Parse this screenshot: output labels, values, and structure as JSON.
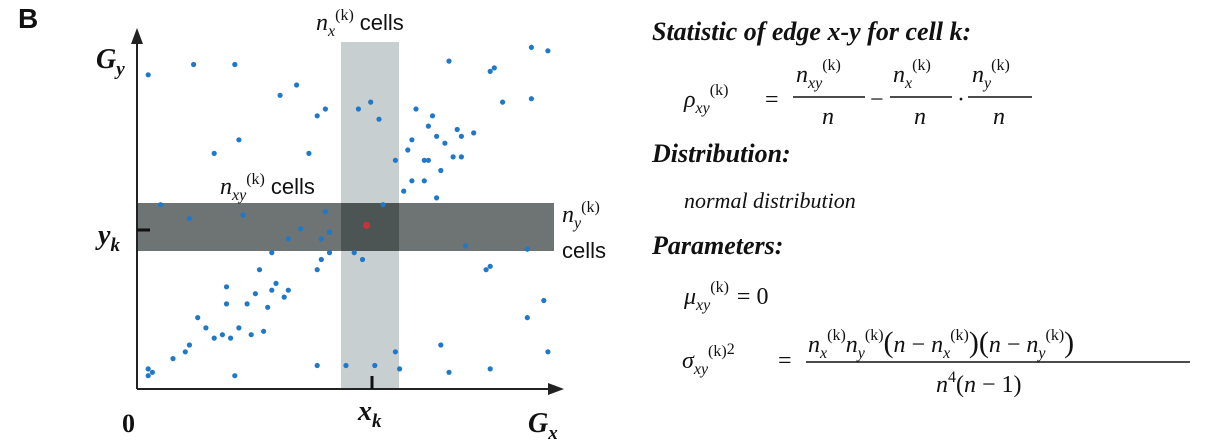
{
  "panel_label": "B",
  "scatter": {
    "y_axis_label_main": "G",
    "y_axis_label_sub": "y",
    "x_axis_label_main": "G",
    "x_axis_label_sub": "x",
    "origin_label": "0",
    "xk_main": "x",
    "xk_sub": "k",
    "yk_main": "y",
    "yk_sub": "k",
    "nx_label": {
      "var": "n",
      "sub": "x",
      "sup": "(k)",
      "word": "cells"
    },
    "nxy_label": {
      "var": "n",
      "sub": "xy",
      "sup": "(k)",
      "word": "cells"
    },
    "ny_label": {
      "var": "n",
      "sub": "y",
      "sup": "(k)",
      "word": "cells"
    },
    "colors": {
      "points": "#1f78c8",
      "highlight": "#c8323c",
      "horizontal_band": "#6e7373",
      "vertical_band": "#c8cfd1",
      "overlap": "#4d5454"
    },
    "points": [
      [
        0.02,
        0.91
      ],
      [
        0.13,
        0.94
      ],
      [
        0.23,
        0.94
      ],
      [
        0.38,
        0.88
      ],
      [
        0.53,
        0.81
      ],
      [
        0.75,
        0.95
      ],
      [
        0.95,
        0.99
      ],
      [
        0.99,
        0.98
      ],
      [
        0.86,
        0.93
      ],
      [
        0.85,
        0.92
      ],
      [
        0.88,
        0.83
      ],
      [
        0.81,
        0.74
      ],
      [
        0.95,
        0.84
      ],
      [
        0.78,
        0.73
      ],
      [
        0.71,
        0.79
      ],
      [
        0.67,
        0.81
      ],
      [
        0.76,
        0.67
      ],
      [
        0.69,
        0.66
      ],
      [
        0.73,
        0.63
      ],
      [
        0.65,
        0.69
      ],
      [
        0.66,
        0.6
      ],
      [
        0.72,
        0.55
      ],
      [
        0.77,
        0.75
      ],
      [
        0.7,
        0.76
      ],
      [
        0.66,
        0.72
      ],
      [
        0.59,
        0.53
      ],
      [
        0.74,
        0.71
      ],
      [
        0.56,
        0.83
      ],
      [
        0.58,
        0.78
      ],
      [
        0.78,
        0.67
      ],
      [
        0.7,
        0.66
      ],
      [
        0.72,
        0.73
      ],
      [
        0.45,
        0.81
      ],
      [
        0.24,
        0.72
      ],
      [
        0.18,
        0.68
      ],
      [
        0.41,
        0.68
      ],
      [
        0.34,
        0.85
      ],
      [
        0.64,
        0.57
      ],
      [
        0.62,
        0.66
      ],
      [
        0.69,
        0.6
      ],
      [
        0.43,
        0.79
      ],
      [
        0.46,
        0.39
      ],
      [
        0.46,
        0.45
      ],
      [
        0.44,
        0.43
      ],
      [
        0.45,
        0.51
      ],
      [
        0.39,
        0.46
      ],
      [
        0.05,
        0.53
      ],
      [
        0.12,
        0.49
      ],
      [
        0.25,
        0.5
      ],
      [
        0.36,
        0.43
      ],
      [
        0.54,
        0.37
      ],
      [
        0.44,
        0.37
      ],
      [
        0.46,
        0.45
      ],
      [
        0.52,
        0.39
      ],
      [
        0.32,
        0.39
      ],
      [
        0.79,
        0.41
      ],
      [
        0.43,
        0.34
      ],
      [
        0.94,
        0.4
      ],
      [
        0.84,
        0.34
      ],
      [
        0.29,
        0.34
      ],
      [
        0.21,
        0.29
      ],
      [
        0.26,
        0.24
      ],
      [
        0.31,
        0.23
      ],
      [
        0.32,
        0.28
      ],
      [
        0.36,
        0.28
      ],
      [
        0.28,
        0.27
      ],
      [
        0.33,
        0.3
      ],
      [
        0.35,
        0.26
      ],
      [
        0.21,
        0.24
      ],
      [
        0.14,
        0.2
      ],
      [
        0.16,
        0.17
      ],
      [
        0.18,
        0.14
      ],
      [
        0.2,
        0.15
      ],
      [
        0.22,
        0.14
      ],
      [
        0.24,
        0.17
      ],
      [
        0.27,
        0.15
      ],
      [
        0.3,
        0.16
      ],
      [
        0.11,
        0.1
      ],
      [
        0.12,
        0.12
      ],
      [
        0.08,
        0.08
      ],
      [
        0.02,
        0.03
      ],
      [
        0.02,
        0.05
      ],
      [
        0.03,
        0.04
      ],
      [
        0.23,
        0.03
      ],
      [
        0.43,
        0.06
      ],
      [
        0.5,
        0.06
      ],
      [
        0.62,
        0.1
      ],
      [
        0.63,
        0.05
      ],
      [
        0.75,
        0.04
      ],
      [
        0.85,
        0.05
      ],
      [
        0.99,
        0.1
      ],
      [
        0.98,
        0.25
      ],
      [
        0.94,
        0.2
      ],
      [
        0.85,
        0.35
      ],
      [
        0.73,
        0.12
      ],
      [
        0.57,
        0.06
      ]
    ],
    "highlight_point": [
      0.55,
      0.47
    ]
  },
  "formulas": {
    "statistic_heading": "Statistic of edge x-y for cell k:",
    "distribution_heading": "Distribution:",
    "distribution_text": "normal distribution",
    "parameters_heading": "Parameters:",
    "rho": {
      "lhs_symbol": "ρ",
      "lhs_sub": "xy",
      "lhs_sup": "(k)",
      "equals": "=",
      "frac1_num_var": "n",
      "frac1_num_sub": "xy",
      "frac1_num_sup": "(k)",
      "frac1_den": "n",
      "minus": "−",
      "frac2_num_var": "n",
      "frac2_num_sub": "x",
      "frac2_num_sup": "(k)",
      "frac2_den": "n",
      "dot": "·",
      "frac3_num_var": "n",
      "frac3_num_sub": "y",
      "frac3_num_sup": "(k)",
      "frac3_den": "n"
    },
    "mu": {
      "symbol": "μ",
      "sub": "xy",
      "sup": "(k)",
      "rhs": "= 0"
    },
    "sigma": {
      "symbol": "σ",
      "sub": "xy",
      "sup": "(k)",
      "power": "2",
      "equals": "=",
      "numerator": "n_x^(k) n_y^(k) (n − n_x^(k)) (n − n_y^(k))",
      "denominator": "n^4 (n − 1)"
    }
  }
}
